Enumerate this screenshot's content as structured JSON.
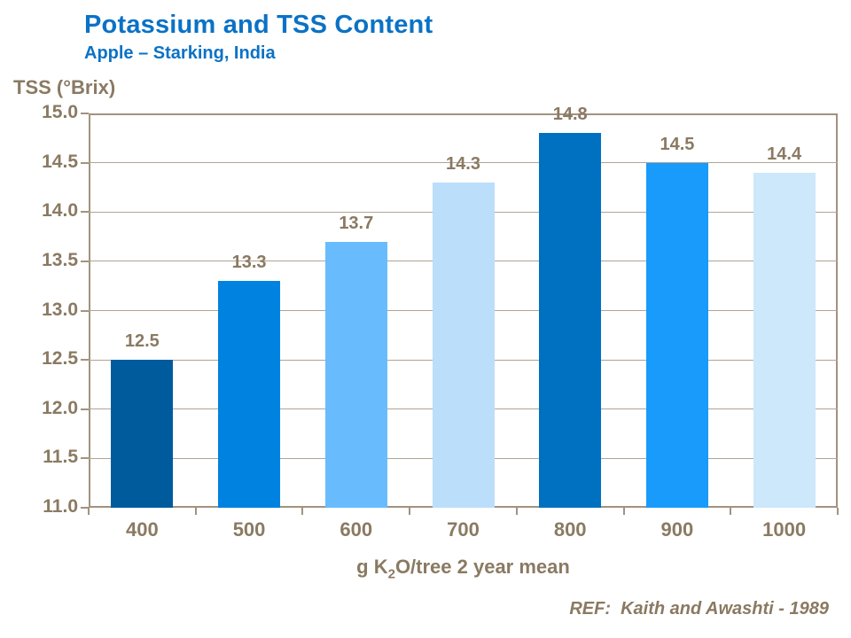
{
  "header": {
    "title": "Potassium and TSS Content",
    "subtitle": "Apple – Starking, India"
  },
  "footer": {
    "ref": "REF:  Kaith and Awashti - 1989"
  },
  "colors": {
    "title_blue": "#0a72c6",
    "text_brown": "#8a7a62",
    "axis_line": "#a1937f",
    "gridline": "#b1a494",
    "background": "#ffffff"
  },
  "chart_data": {
    "type": "bar",
    "title": "Potassium and TSS Content",
    "subtitle": "Apple – Starking, India",
    "categories": [
      "400",
      "500",
      "600",
      "700",
      "800",
      "900",
      "1000"
    ],
    "values": [
      12.5,
      13.3,
      13.7,
      14.3,
      14.8,
      14.5,
      14.4
    ],
    "value_labels": [
      "12.5",
      "13.3",
      "13.7",
      "14.3",
      "14.8",
      "14.5",
      "14.4"
    ],
    "bar_colors": [
      "#005b9d",
      "#0082e0",
      "#68bcfd",
      "#bbdefb",
      "#0071c1",
      "#189bfa",
      "#cde7fb"
    ],
    "ylabel": "TSS (°Brix)",
    "xlabel": {
      "pre": "g K",
      "sub": "2",
      "post": "O/tree 2 year mean"
    },
    "ylim": [
      11.0,
      15.0
    ],
    "ytick_step": 0.5,
    "yticks": [
      "15.0",
      "14.5",
      "14.0",
      "13.5",
      "13.0",
      "12.5",
      "12.0",
      "11.5",
      "11.0"
    ],
    "grid": true,
    "legend": false
  }
}
